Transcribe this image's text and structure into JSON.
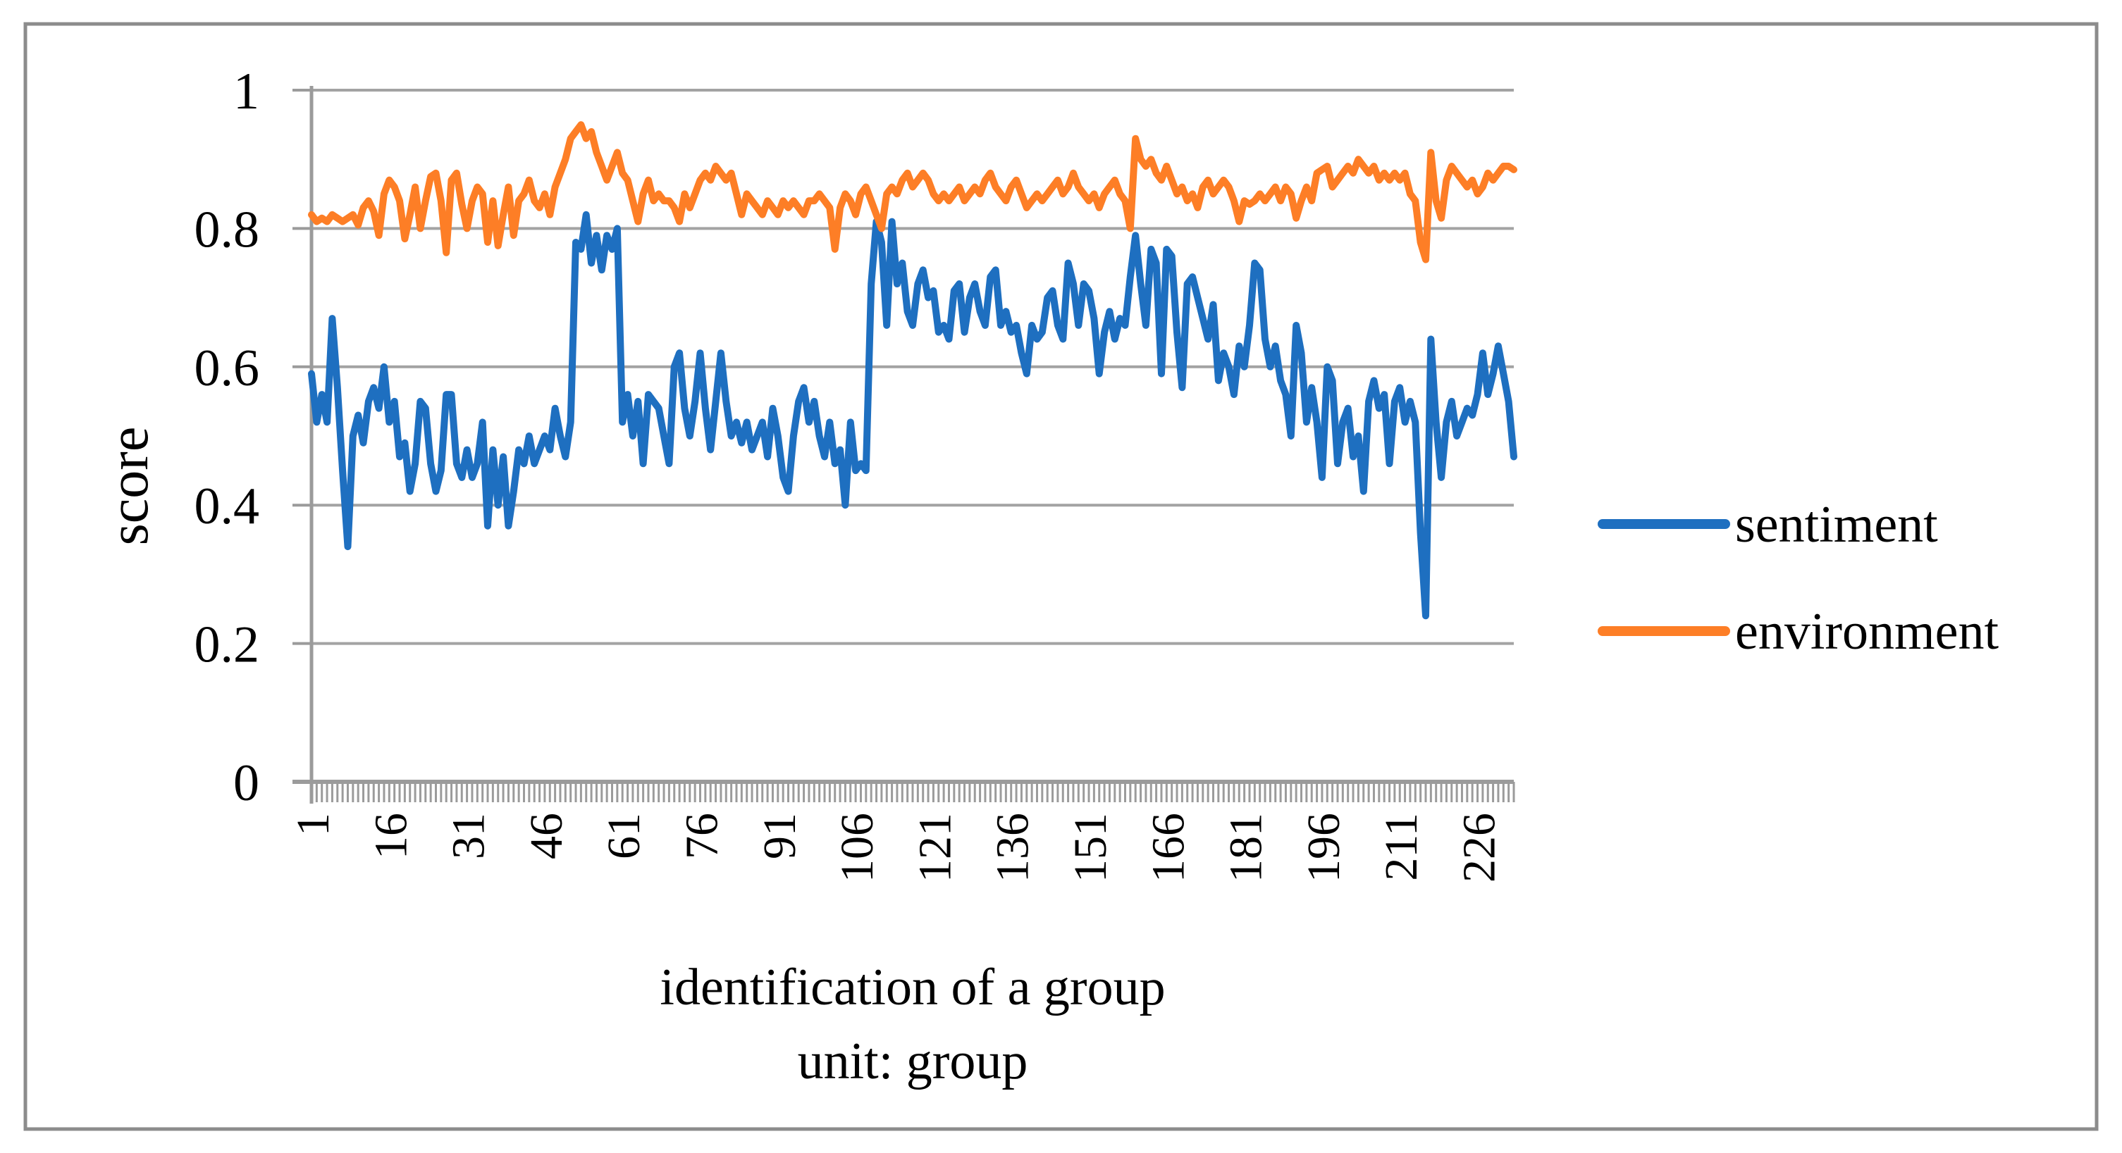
{
  "figure": {
    "background": "#ffffff",
    "border_color": "#8c8c8c",
    "text_color": "#000000"
  },
  "chart_data": {
    "type": "line",
    "title": "",
    "xlabel": "identification of a group",
    "xlabel_sub": "unit: group",
    "ylabel": "score",
    "ylim": [
      0,
      1
    ],
    "ytick_labels": [
      "1",
      "0.8",
      "0.6",
      "0.4",
      "0.2",
      "0"
    ],
    "ytick_values": [
      1,
      0.8,
      0.6,
      0.4,
      0.2,
      0
    ],
    "xtick_labels": [
      "1",
      "16",
      "31",
      "46",
      "61",
      "76",
      "91",
      "106",
      "121",
      "136",
      "151",
      "166",
      "181",
      "196",
      "211",
      "226"
    ],
    "xtick_step": 15,
    "x_start": 1,
    "grid": "horizontal",
    "gridline_color": "#a3a3a3",
    "axis_color": "#9b9b9b",
    "tick_color": "#9b9b9b",
    "legend_position": "right",
    "series": [
      {
        "name": "sentiment",
        "color": "#1e6fc0",
        "values": [
          0.59,
          0.52,
          0.56,
          0.52,
          0.67,
          0.57,
          0.45,
          0.34,
          0.5,
          0.53,
          0.49,
          0.55,
          0.57,
          0.54,
          0.6,
          0.52,
          0.55,
          0.47,
          0.49,
          0.42,
          0.46,
          0.55,
          0.54,
          0.46,
          0.42,
          0.45,
          0.56,
          0.56,
          0.46,
          0.44,
          0.48,
          0.44,
          0.46,
          0.52,
          0.37,
          0.48,
          0.4,
          0.47,
          0.37,
          0.42,
          0.48,
          0.46,
          0.5,
          0.46,
          0.48,
          0.5,
          0.48,
          0.54,
          0.5,
          0.47,
          0.52,
          0.78,
          0.77,
          0.82,
          0.75,
          0.79,
          0.74,
          0.79,
          0.77,
          0.8,
          0.52,
          0.56,
          0.5,
          0.55,
          0.46,
          0.56,
          0.55,
          0.54,
          0.5,
          0.46,
          0.6,
          0.62,
          0.54,
          0.5,
          0.55,
          0.62,
          0.54,
          0.48,
          0.55,
          0.62,
          0.55,
          0.5,
          0.52,
          0.49,
          0.52,
          0.48,
          0.5,
          0.52,
          0.47,
          0.54,
          0.5,
          0.44,
          0.42,
          0.5,
          0.55,
          0.57,
          0.52,
          0.55,
          0.5,
          0.47,
          0.52,
          0.46,
          0.48,
          0.4,
          0.52,
          0.45,
          0.46,
          0.45,
          0.72,
          0.81,
          0.78,
          0.66,
          0.81,
          0.72,
          0.75,
          0.68,
          0.66,
          0.72,
          0.74,
          0.7,
          0.71,
          0.65,
          0.66,
          0.64,
          0.71,
          0.72,
          0.65,
          0.7,
          0.72,
          0.68,
          0.66,
          0.73,
          0.74,
          0.66,
          0.68,
          0.65,
          0.66,
          0.62,
          0.59,
          0.66,
          0.64,
          0.65,
          0.7,
          0.71,
          0.66,
          0.64,
          0.75,
          0.72,
          0.66,
          0.72,
          0.71,
          0.67,
          0.59,
          0.65,
          0.68,
          0.64,
          0.67,
          0.66,
          0.73,
          0.79,
          0.72,
          0.66,
          0.77,
          0.75,
          0.59,
          0.77,
          0.76,
          0.65,
          0.57,
          0.72,
          0.73,
          0.7,
          0.67,
          0.64,
          0.69,
          0.58,
          0.62,
          0.6,
          0.56,
          0.63,
          0.6,
          0.66,
          0.75,
          0.74,
          0.64,
          0.6,
          0.63,
          0.58,
          0.56,
          0.5,
          0.66,
          0.62,
          0.52,
          0.57,
          0.52,
          0.44,
          0.6,
          0.58,
          0.46,
          0.52,
          0.54,
          0.47,
          0.5,
          0.42,
          0.55,
          0.58,
          0.54,
          0.56,
          0.46,
          0.55,
          0.57,
          0.52,
          0.55,
          0.52,
          0.36,
          0.24,
          0.64,
          0.52,
          0.44,
          0.52,
          0.55,
          0.5,
          0.52,
          0.54,
          0.53,
          0.56,
          0.62,
          0.56,
          0.59,
          0.63,
          0.59,
          0.55,
          0.47
        ]
      },
      {
        "name": "environment",
        "color": "#fd7e26",
        "values": [
          0.82,
          0.81,
          0.815,
          0.81,
          0.82,
          0.815,
          0.81,
          0.815,
          0.82,
          0.805,
          0.83,
          0.84,
          0.825,
          0.79,
          0.85,
          0.87,
          0.86,
          0.84,
          0.785,
          0.82,
          0.86,
          0.8,
          0.84,
          0.875,
          0.88,
          0.84,
          0.765,
          0.87,
          0.88,
          0.835,
          0.8,
          0.84,
          0.86,
          0.85,
          0.78,
          0.84,
          0.775,
          0.82,
          0.86,
          0.79,
          0.84,
          0.85,
          0.87,
          0.84,
          0.83,
          0.85,
          0.82,
          0.86,
          0.88,
          0.9,
          0.93,
          0.94,
          0.95,
          0.93,
          0.94,
          0.91,
          0.89,
          0.87,
          0.89,
          0.91,
          0.88,
          0.87,
          0.84,
          0.81,
          0.85,
          0.87,
          0.84,
          0.85,
          0.84,
          0.84,
          0.83,
          0.81,
          0.85,
          0.83,
          0.85,
          0.87,
          0.88,
          0.87,
          0.89,
          0.88,
          0.87,
          0.88,
          0.85,
          0.82,
          0.85,
          0.84,
          0.83,
          0.82,
          0.84,
          0.83,
          0.82,
          0.84,
          0.83,
          0.84,
          0.83,
          0.82,
          0.84,
          0.84,
          0.85,
          0.84,
          0.83,
          0.77,
          0.83,
          0.85,
          0.84,
          0.82,
          0.85,
          0.86,
          0.84,
          0.82,
          0.8,
          0.85,
          0.86,
          0.85,
          0.87,
          0.88,
          0.86,
          0.87,
          0.88,
          0.87,
          0.85,
          0.84,
          0.85,
          0.84,
          0.85,
          0.86,
          0.84,
          0.85,
          0.86,
          0.85,
          0.87,
          0.88,
          0.86,
          0.85,
          0.84,
          0.86,
          0.87,
          0.85,
          0.83,
          0.84,
          0.85,
          0.84,
          0.85,
          0.86,
          0.87,
          0.85,
          0.86,
          0.88,
          0.86,
          0.85,
          0.84,
          0.85,
          0.83,
          0.85,
          0.86,
          0.87,
          0.85,
          0.84,
          0.8,
          0.93,
          0.9,
          0.89,
          0.9,
          0.88,
          0.87,
          0.89,
          0.87,
          0.85,
          0.86,
          0.84,
          0.85,
          0.83,
          0.86,
          0.87,
          0.85,
          0.86,
          0.87,
          0.86,
          0.84,
          0.81,
          0.84,
          0.835,
          0.84,
          0.85,
          0.84,
          0.85,
          0.86,
          0.84,
          0.86,
          0.85,
          0.815,
          0.84,
          0.86,
          0.84,
          0.88,
          0.885,
          0.89,
          0.86,
          0.87,
          0.88,
          0.89,
          0.88,
          0.9,
          0.89,
          0.88,
          0.89,
          0.87,
          0.88,
          0.87,
          0.88,
          0.87,
          0.88,
          0.85,
          0.84,
          0.78,
          0.755,
          0.91,
          0.84,
          0.815,
          0.87,
          0.89,
          0.88,
          0.87,
          0.86,
          0.87,
          0.85,
          0.86,
          0.88,
          0.87,
          0.88,
          0.89,
          0.89,
          0.885
        ]
      }
    ]
  }
}
